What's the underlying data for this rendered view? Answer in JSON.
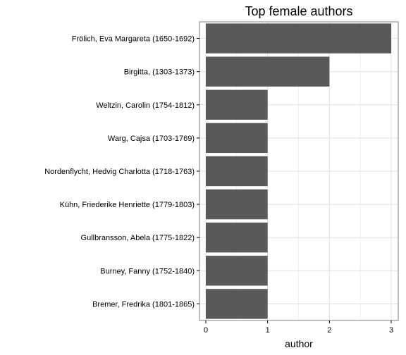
{
  "chart_data": {
    "type": "bar",
    "orientation": "horizontal",
    "title": "Top female authors",
    "xlabel": "author",
    "ylabel": "",
    "xlim": [
      0,
      3.15
    ],
    "x_ticks": [
      "0",
      "1",
      "2",
      "3"
    ],
    "grid": true,
    "legend": "none",
    "bar_color": "#595959",
    "categories": [
      "Frölich, Eva Margareta (1650-1692)",
      "Birgitta,  (1303-1373)",
      "Weltzin, Carolin (1754-1812)",
      "Warg, Cajsa (1703-1769)",
      "Nordenflycht, Hedvig Charlotta (1718-1763)",
      "Kühn, Friederike Henriette (1779-1803)",
      "Gullbransson, Abela (1775-1822)",
      "Burney, Fanny (1752-1840)",
      "Bremer, Fredrika (1801-1865)"
    ],
    "values": [
      3,
      2,
      1,
      1,
      1,
      1,
      1,
      1,
      1
    ]
  }
}
